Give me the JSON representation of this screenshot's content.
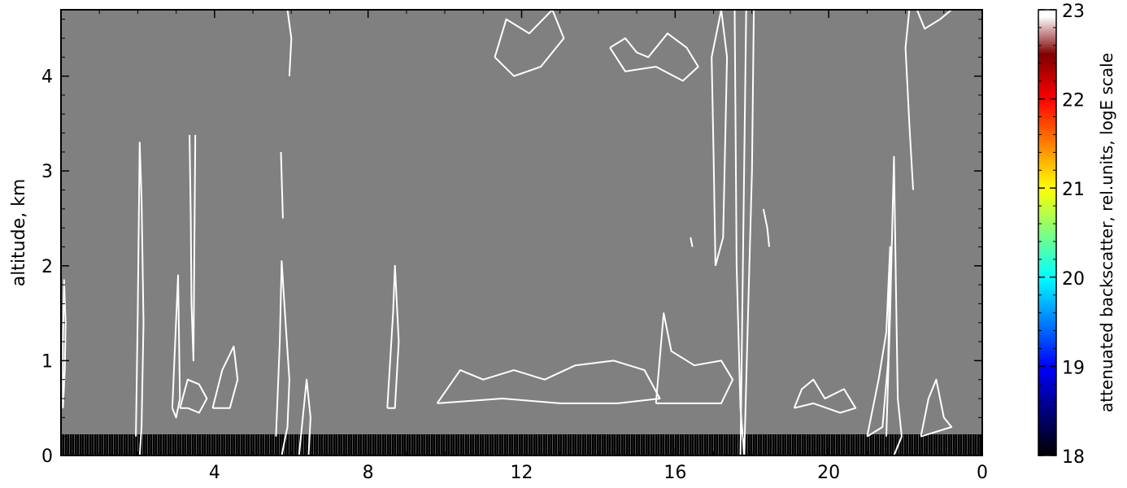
{
  "chart_data": {
    "type": "heatmap",
    "title": "",
    "xlabel": "",
    "ylabel": "altitude, km",
    "x_ticks": [
      "4",
      "8",
      "12",
      "16",
      "20",
      "0"
    ],
    "x_tick_values": [
      4,
      8,
      12,
      16,
      20,
      24
    ],
    "xlim": [
      0,
      24
    ],
    "y_ticks": [
      "0",
      "1",
      "2",
      "3",
      "4"
    ],
    "y_tick_values": [
      0,
      1,
      2,
      3,
      4
    ],
    "ylim": [
      0,
      4.7
    ],
    "grid": false,
    "background_value_color": "#808080",
    "surface_layer": {
      "top_km": 0.22,
      "color": "#000000"
    },
    "contour_color": "#ffffff",
    "contours": [
      {
        "name": "a",
        "points": [
          [
            0.05,
            0.5
          ],
          [
            0.1,
            0.9
          ],
          [
            0.12,
            1.4
          ],
          [
            0.08,
            1.85
          ],
          [
            0.05,
            1.2
          ],
          [
            0.05,
            0.5
          ]
        ]
      },
      {
        "name": "b",
        "points": [
          [
            1.95,
            0.2
          ],
          [
            2.0,
            1.5
          ],
          [
            2.05,
            3.3
          ],
          [
            2.1,
            2.7
          ],
          [
            2.15,
            1.4
          ],
          [
            2.1,
            0.3
          ],
          [
            2.05,
            0.0
          ]
        ]
      },
      {
        "name": "c",
        "points": [
          [
            3.35,
            3.38
          ],
          [
            3.38,
            2.5
          ],
          [
            3.4,
            1.6
          ],
          [
            3.45,
            1.0
          ],
          [
            3.5,
            3.38
          ]
        ]
      },
      {
        "name": "d",
        "points": [
          [
            2.9,
            0.5
          ],
          [
            3.05,
            1.9
          ],
          [
            3.1,
            0.6
          ],
          [
            3.0,
            0.4
          ],
          [
            2.9,
            0.5
          ]
        ]
      },
      {
        "name": "e",
        "points": [
          [
            3.1,
            0.5
          ],
          [
            3.3,
            0.8
          ],
          [
            3.6,
            0.75
          ],
          [
            3.8,
            0.6
          ],
          [
            3.6,
            0.45
          ],
          [
            3.3,
            0.5
          ],
          [
            3.1,
            0.5
          ]
        ]
      },
      {
        "name": "f",
        "points": [
          [
            3.95,
            0.5
          ],
          [
            4.2,
            0.9
          ],
          [
            4.5,
            1.15
          ],
          [
            4.6,
            0.8
          ],
          [
            4.4,
            0.5
          ],
          [
            3.95,
            0.5
          ]
        ]
      },
      {
        "name": "g",
        "points": [
          [
            5.6,
            0.2
          ],
          [
            5.7,
            1.2
          ],
          [
            5.75,
            2.05
          ],
          [
            5.85,
            1.4
          ],
          [
            5.95,
            0.8
          ],
          [
            5.9,
            0.3
          ],
          [
            5.75,
            0.0
          ]
        ]
      },
      {
        "name": "h",
        "points": [
          [
            6.2,
            0.0
          ],
          [
            6.3,
            0.4
          ],
          [
            6.4,
            0.8
          ],
          [
            6.5,
            0.4
          ],
          [
            6.45,
            0.0
          ]
        ]
      },
      {
        "name": "i",
        "points": [
          [
            8.5,
            0.5
          ],
          [
            8.65,
            1.5
          ],
          [
            8.7,
            2.0
          ],
          [
            8.8,
            1.2
          ],
          [
            8.7,
            0.5
          ],
          [
            8.5,
            0.5
          ]
        ]
      },
      {
        "name": "j",
        "points": [
          [
            9.8,
            0.55
          ],
          [
            10.4,
            0.9
          ],
          [
            11.0,
            0.8
          ],
          [
            11.8,
            0.9
          ],
          [
            12.6,
            0.8
          ],
          [
            13.4,
            0.95
          ],
          [
            14.4,
            1.0
          ],
          [
            15.2,
            0.9
          ],
          [
            15.6,
            0.6
          ],
          [
            14.5,
            0.55
          ],
          [
            13.0,
            0.55
          ],
          [
            11.5,
            0.6
          ],
          [
            9.8,
            0.55
          ]
        ]
      },
      {
        "name": "k",
        "points": [
          [
            15.5,
            0.55
          ],
          [
            15.7,
            1.5
          ],
          [
            15.9,
            1.1
          ],
          [
            16.5,
            0.95
          ],
          [
            17.2,
            1.0
          ],
          [
            17.5,
            0.8
          ],
          [
            17.2,
            0.55
          ],
          [
            16.2,
            0.55
          ],
          [
            15.5,
            0.55
          ]
        ]
      },
      {
        "name": "l",
        "points": [
          [
            17.05,
            2.0
          ],
          [
            17.0,
            3.2
          ],
          [
            16.95,
            4.2
          ],
          [
            17.2,
            4.7
          ],
          [
            17.35,
            4.2
          ],
          [
            17.25,
            2.3
          ],
          [
            17.05,
            2.0
          ]
        ]
      },
      {
        "name": "m",
        "points": [
          [
            17.55,
            4.7
          ],
          [
            17.6,
            2.0
          ],
          [
            17.7,
            0.5
          ],
          [
            17.8,
            0.0
          ],
          [
            17.9,
            1.5
          ],
          [
            18.0,
            3.0
          ],
          [
            18.05,
            4.7
          ]
        ]
      },
      {
        "name": "n",
        "points": [
          [
            17.7,
            0.0
          ],
          [
            17.85,
            4.7
          ]
        ]
      },
      {
        "name": "o",
        "points": [
          [
            11.3,
            4.2
          ],
          [
            11.6,
            4.6
          ],
          [
            12.2,
            4.45
          ],
          [
            12.8,
            4.7
          ],
          [
            13.1,
            4.4
          ],
          [
            12.5,
            4.1
          ],
          [
            11.8,
            4.0
          ],
          [
            11.3,
            4.2
          ]
        ]
      },
      {
        "name": "p",
        "points": [
          [
            14.3,
            4.3
          ],
          [
            14.7,
            4.4
          ],
          [
            15.0,
            4.25
          ],
          [
            15.3,
            4.2
          ],
          [
            15.8,
            4.45
          ],
          [
            16.3,
            4.3
          ],
          [
            16.6,
            4.1
          ],
          [
            16.2,
            3.95
          ],
          [
            15.5,
            4.1
          ],
          [
            14.7,
            4.05
          ],
          [
            14.3,
            4.3
          ]
        ]
      },
      {
        "name": "q",
        "points": [
          [
            21.5,
            0.2
          ],
          [
            21.6,
            1.5
          ],
          [
            21.7,
            3.15
          ],
          [
            21.75,
            1.8
          ],
          [
            21.8,
            0.6
          ],
          [
            21.9,
            0.2
          ],
          [
            21.7,
            0.0
          ]
        ]
      },
      {
        "name": "r",
        "points": [
          [
            21.0,
            0.2
          ],
          [
            21.3,
            0.8
          ],
          [
            21.5,
            1.3
          ],
          [
            21.6,
            2.2
          ],
          [
            21.55,
            1.0
          ],
          [
            21.4,
            0.3
          ],
          [
            21.0,
            0.2
          ]
        ]
      },
      {
        "name": "s",
        "points": [
          [
            22.2,
            2.8
          ],
          [
            22.1,
            3.5
          ],
          [
            22.0,
            4.3
          ],
          [
            22.1,
            4.7
          ]
        ]
      },
      {
        "name": "t",
        "points": [
          [
            22.4,
            0.2
          ],
          [
            22.6,
            0.6
          ],
          [
            22.8,
            0.8
          ],
          [
            23.0,
            0.4
          ],
          [
            23.2,
            0.3
          ],
          [
            22.4,
            0.2
          ]
        ]
      },
      {
        "name": "u",
        "points": [
          [
            22.3,
            4.7
          ],
          [
            22.5,
            4.5
          ],
          [
            22.9,
            4.6
          ],
          [
            23.2,
            4.7
          ]
        ]
      },
      {
        "name": "v",
        "points": [
          [
            19.1,
            0.5
          ],
          [
            19.3,
            0.7
          ],
          [
            19.6,
            0.8
          ],
          [
            19.9,
            0.6
          ],
          [
            20.4,
            0.7
          ],
          [
            20.7,
            0.5
          ],
          [
            20.3,
            0.45
          ],
          [
            19.6,
            0.55
          ],
          [
            19.1,
            0.5
          ]
        ]
      },
      {
        "name": "w",
        "points": [
          [
            5.73,
            3.2
          ],
          [
            5.78,
            2.5
          ]
        ]
      },
      {
        "name": "x",
        "points": [
          [
            5.9,
            4.7
          ],
          [
            6.0,
            4.4
          ],
          [
            5.95,
            4.0
          ]
        ]
      },
      {
        "name": "y",
        "points": [
          [
            16.4,
            2.3
          ],
          [
            16.45,
            2.2
          ]
        ]
      },
      {
        "name": "z",
        "points": [
          [
            18.3,
            2.6
          ],
          [
            18.4,
            2.4
          ],
          [
            18.45,
            2.2
          ]
        ]
      }
    ],
    "colorbar": {
      "label": "attenuated backscatter, rel.units, logE scale",
      "ticks": [
        "18",
        "19",
        "20",
        "21",
        "22",
        "23"
      ],
      "tick_values": [
        18,
        19,
        20,
        21,
        22,
        23
      ],
      "range": [
        18,
        23
      ],
      "colors": [
        "#000000",
        "#00007f",
        "#0000ff",
        "#007fff",
        "#00ffff",
        "#7fff7f",
        "#ffff00",
        "#ff7f00",
        "#ff0000",
        "#7f0000",
        "#ffffff"
      ]
    }
  }
}
